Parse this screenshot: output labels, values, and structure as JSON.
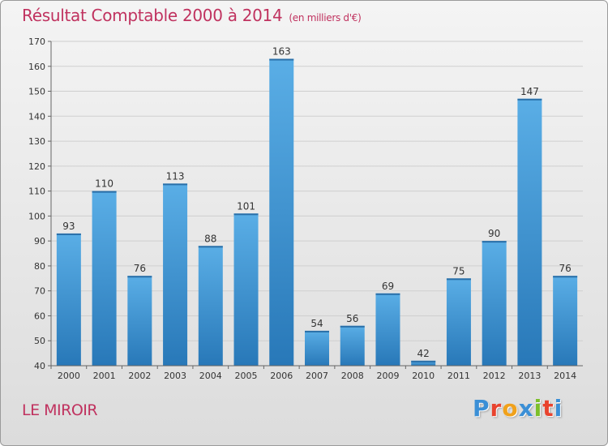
{
  "title": "Résultat Comptable 2000 à 2014",
  "subtitle": "(en milliers d'€)",
  "place": "LE MIROIR",
  "logo": {
    "letters": [
      "P",
      "r",
      "o",
      "x",
      "i",
      "t",
      "i"
    ],
    "colors": [
      "#3b8fd6",
      "#e8432e",
      "#f0a11b",
      "#3b8fd6",
      "#7cbf2a",
      "#e8432e",
      "#3b8fd6"
    ]
  },
  "colors": {
    "accent": "#c0325f",
    "bar_top": "#5aaee6",
    "bar_bottom": "#2878b8"
  },
  "chart_data": {
    "type": "bar",
    "title": "Résultat Comptable 2000 à 2014",
    "subtitle": "(en milliers d'€)",
    "categories": [
      "2000",
      "2001",
      "2002",
      "2003",
      "2004",
      "2005",
      "2006",
      "2007",
      "2008",
      "2009",
      "2010",
      "2011",
      "2012",
      "2013",
      "2014"
    ],
    "values": [
      93,
      110,
      76,
      113,
      88,
      101,
      163,
      54,
      56,
      69,
      42,
      75,
      90,
      147,
      76
    ],
    "ylim": [
      40,
      170
    ],
    "yticks": [
      40,
      50,
      60,
      70,
      80,
      90,
      100,
      110,
      120,
      130,
      140,
      150,
      160,
      170
    ],
    "grid": true,
    "legend": "none"
  }
}
